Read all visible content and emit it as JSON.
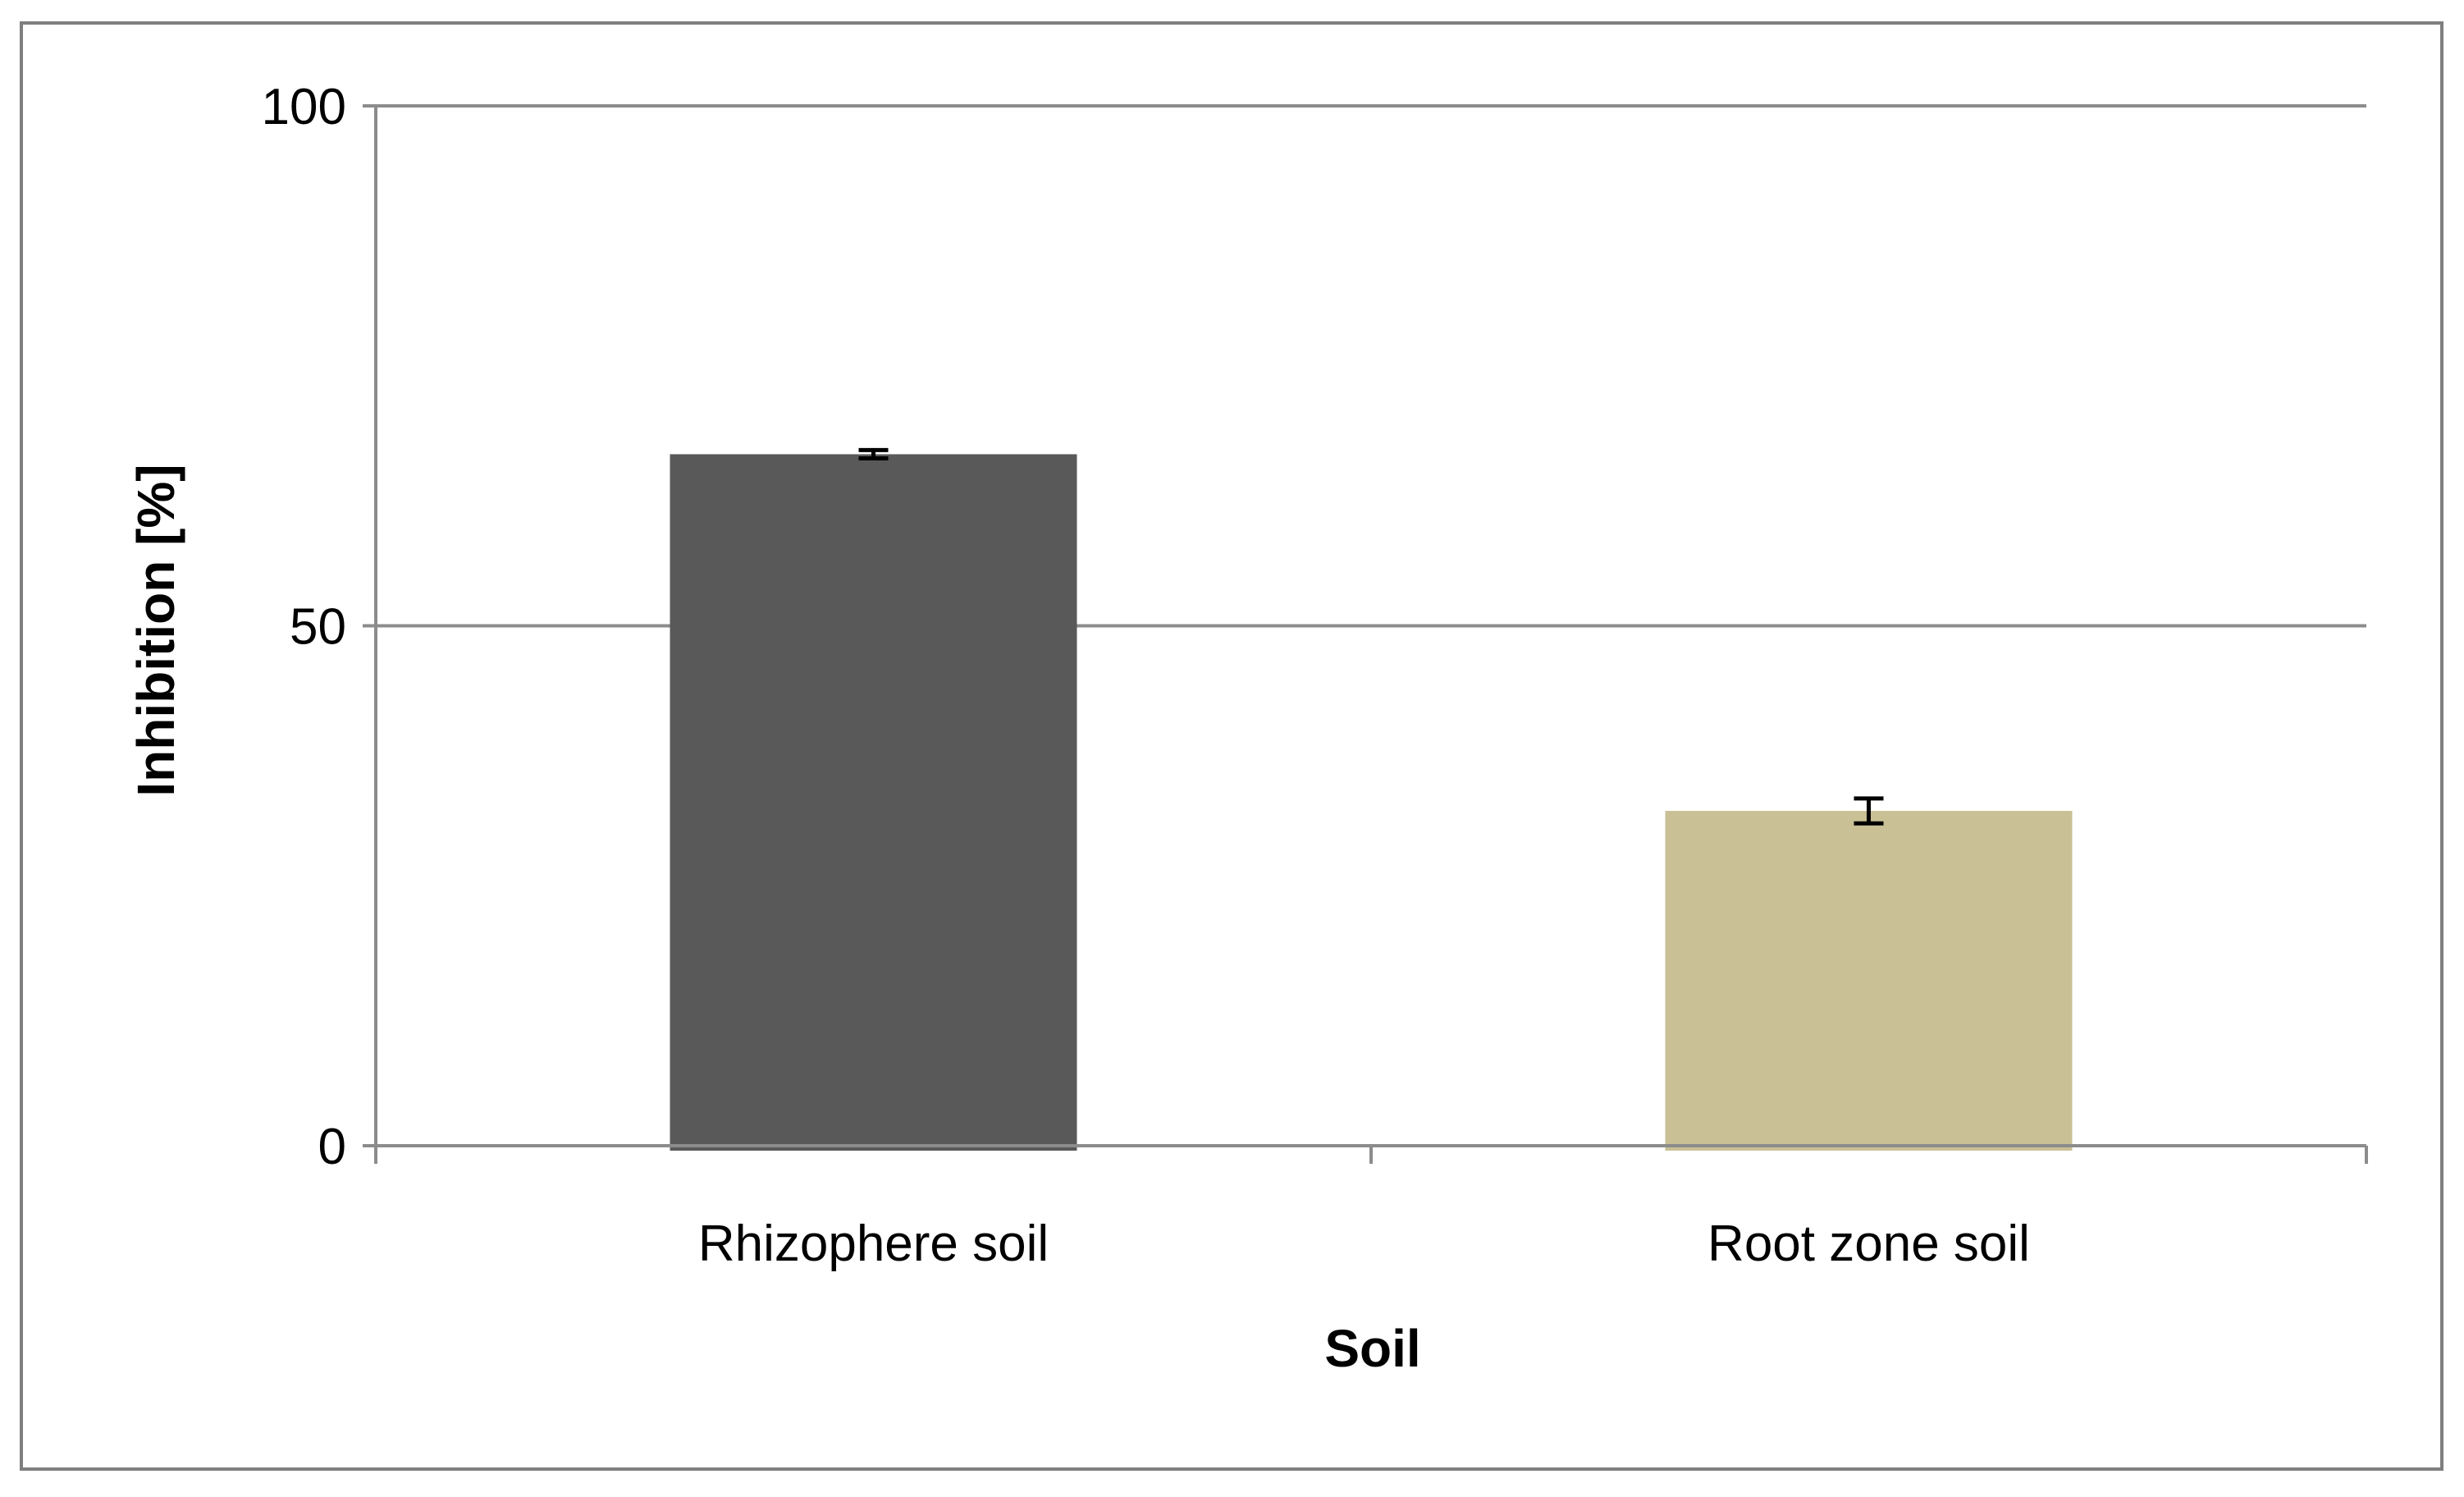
{
  "chart_data": {
    "type": "bar",
    "title": "",
    "xlabel": "Soil",
    "ylabel": "Inhibition  [%]",
    "categories": [
      "Rhizophere soil",
      "Root zone soil"
    ],
    "values": [
      66.5,
      32.2
    ],
    "error": [
      0.4,
      1.2
    ],
    "ylim": [
      0,
      100
    ],
    "yticks": [
      0,
      50,
      100
    ],
    "grid": true,
    "colors": [
      "#595959",
      "#c9c095"
    ],
    "axis_color": "#8c8c8c",
    "error_color": "#000000"
  }
}
